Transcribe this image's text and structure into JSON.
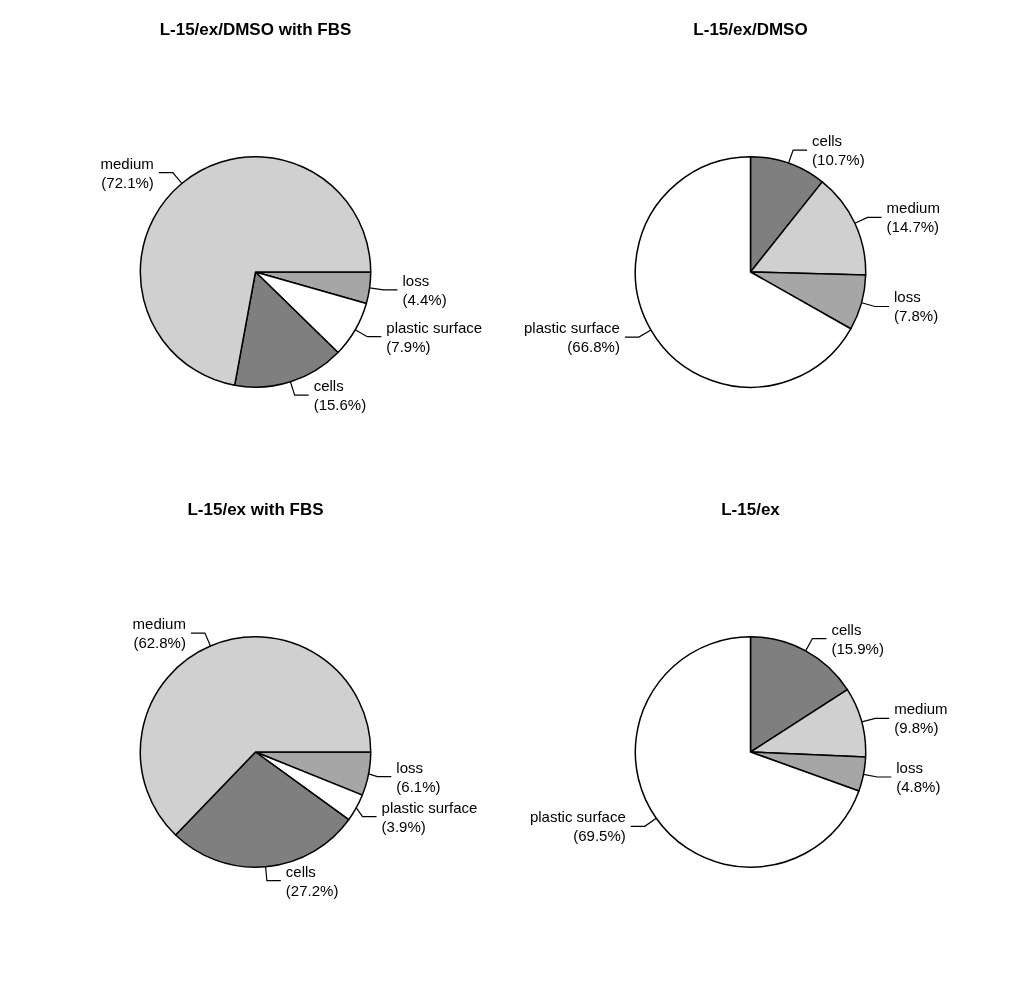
{
  "chart_data": [
    {
      "type": "pie",
      "title": "L-15/ex/DMSO with FBS",
      "categories": [
        "loss",
        "plastic surface",
        "cells",
        "medium"
      ],
      "values": [
        4.4,
        7.9,
        15.6,
        72.1
      ],
      "value_labels": [
        "(4.4%)",
        "(7.9%)",
        "(15.6%)",
        "(72.1%)"
      ],
      "colors": [
        "#a6a6a6",
        "#ffffff",
        "#7f7f7f",
        "#d0d0d0"
      ]
    },
    {
      "type": "pie",
      "title": "L-15/ex/DMSO",
      "categories": [
        "cells",
        "medium",
        "loss",
        "plastic surface"
      ],
      "values": [
        10.7,
        14.7,
        7.8,
        66.8
      ],
      "value_labels": [
        "(10.7%)",
        "(14.7%)",
        "(7.8%)",
        "(66.8%)"
      ],
      "colors": [
        "#7f7f7f",
        "#d0d0d0",
        "#a6a6a6",
        "#ffffff"
      ]
    },
    {
      "type": "pie",
      "title": "L-15/ex with FBS",
      "categories": [
        "loss",
        "plastic surface",
        "cells",
        "medium"
      ],
      "values": [
        6.1,
        3.9,
        27.2,
        62.8
      ],
      "value_labels": [
        "(6.1%)",
        "(3.9%)",
        "(27.2%)",
        "(62.8%)"
      ],
      "colors": [
        "#a6a6a6",
        "#ffffff",
        "#7f7f7f",
        "#d0d0d0"
      ]
    },
    {
      "type": "pie",
      "title": "L-15/ex",
      "categories": [
        "cells",
        "medium",
        "loss",
        "plastic surface"
      ],
      "values": [
        15.9,
        9.8,
        4.8,
        69.5
      ],
      "value_labels": [
        "(15.9%)",
        "(9.8%)",
        "(4.8%)",
        "(69.5%)"
      ],
      "colors": [
        "#7f7f7f",
        "#d0d0d0",
        "#a6a6a6",
        "#ffffff"
      ]
    }
  ]
}
